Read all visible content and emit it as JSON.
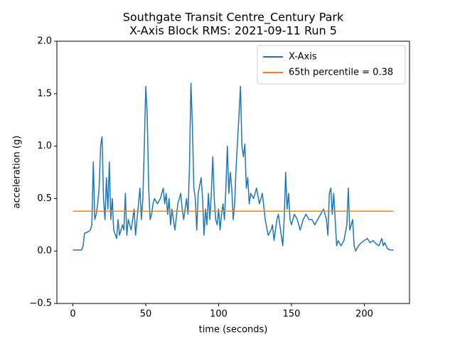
{
  "chart_data": {
    "type": "line",
    "title": "Southgate Transit Centre_Century Park",
    "subtitle": "X-Axis Block RMS: 2021-09-11 Run 5",
    "x_label": "time (seconds)",
    "y_label": "acceleration (g)",
    "xlim": [
      -11,
      231
    ],
    "ylim": [
      -0.5,
      2.0
    ],
    "xticks": [
      0,
      50,
      100,
      150,
      200
    ],
    "yticks": [
      {
        "value": -0.5,
        "label": "−0.5"
      },
      {
        "value": 0,
        "label": "0.0"
      },
      {
        "value": 0.5,
        "label": "0.5"
      },
      {
        "value": 1,
        "label": "1.0"
      },
      {
        "value": 1.5,
        "label": "1.5"
      },
      {
        "value": 2,
        "label": "2.0"
      }
    ],
    "legend": "upper right",
    "series": [
      {
        "name": "X-Axis",
        "color": "#1f77b4",
        "x": [
          0,
          2,
          4,
          6,
          7,
          8,
          10,
          12,
          13,
          14,
          15,
          16,
          17,
          18,
          19,
          20,
          21,
          22,
          23,
          24,
          25,
          26,
          27,
          28,
          30,
          31,
          32,
          34,
          35,
          36,
          37,
          38,
          40,
          42,
          43,
          44,
          46,
          47,
          48,
          49,
          50,
          51,
          52,
          53,
          54,
          55,
          56,
          58,
          60,
          62,
          63,
          64,
          65,
          66,
          67,
          68,
          70,
          72,
          74,
          75,
          76,
          78,
          79,
          80,
          81,
          82,
          83,
          84,
          85,
          86,
          88,
          89,
          90,
          91,
          92,
          93,
          94,
          95,
          96,
          97,
          98,
          99,
          100,
          101,
          102,
          103,
          104,
          105,
          106,
          107,
          108,
          109,
          110,
          111,
          112,
          113,
          114,
          115,
          116,
          117,
          118,
          119,
          120,
          121,
          122,
          124,
          126,
          128,
          130,
          132,
          134,
          136,
          137,
          138,
          140,
          141,
          142,
          144,
          145,
          146,
          147,
          148,
          149,
          150,
          152,
          154,
          156,
          158,
          160,
          162,
          164,
          166,
          168,
          170,
          172,
          174,
          175,
          176,
          177,
          178,
          179,
          180,
          181,
          182,
          184,
          186,
          188,
          189,
          190,
          192,
          193,
          194,
          196,
          198,
          200,
          202,
          204,
          206,
          208,
          210,
          212,
          213,
          214,
          216,
          218,
          220
        ],
        "values": [
          0.01,
          0.01,
          0.01,
          0.01,
          0.05,
          0.17,
          0.18,
          0.2,
          0.25,
          0.85,
          0.3,
          0.35,
          0.45,
          0.6,
          1.0,
          1.09,
          0.5,
          0.3,
          0.7,
          0.4,
          0.85,
          0.3,
          0.5,
          0.2,
          0.12,
          0.3,
          0.15,
          0.25,
          0.2,
          0.55,
          0.15,
          0.3,
          0.2,
          0.4,
          0.15,
          0.3,
          0.6,
          0.3,
          0.5,
          1.0,
          1.57,
          1.3,
          0.6,
          0.3,
          0.35,
          0.45,
          0.5,
          0.45,
          0.5,
          0.6,
          0.45,
          0.55,
          0.35,
          0.5,
          0.25,
          0.4,
          0.2,
          0.45,
          0.55,
          0.4,
          0.3,
          0.5,
          0.35,
          0.8,
          1.6,
          1.2,
          0.6,
          0.5,
          0.2,
          0.55,
          0.7,
          0.5,
          0.15,
          0.4,
          0.25,
          0.55,
          0.3,
          0.55,
          0.9,
          0.5,
          0.3,
          0.25,
          0.4,
          0.2,
          0.35,
          0.45,
          0.3,
          0.6,
          1.0,
          0.55,
          0.75,
          0.6,
          0.3,
          0.45,
          0.8,
          1.05,
          1.3,
          1.57,
          1.0,
          0.9,
          1.02,
          0.6,
          0.7,
          0.45,
          0.55,
          0.5,
          0.6,
          0.45,
          0.55,
          0.3,
          0.15,
          0.2,
          0.25,
          0.1,
          0.3,
          0.35,
          0.25,
          0.05,
          0.3,
          0.75,
          0.4,
          0.55,
          0.3,
          0.25,
          0.35,
          0.3,
          0.2,
          0.3,
          0.35,
          0.3,
          0.3,
          0.25,
          0.3,
          0.35,
          0.4,
          0.3,
          0.15,
          0.55,
          0.6,
          0.35,
          0.55,
          0.3,
          0.05,
          0.1,
          0.05,
          0.1,
          0.25,
          0.6,
          0.2,
          0.3,
          0.05,
          0.0,
          0.05,
          0.08,
          0.1,
          0.12,
          0.08,
          0.1,
          0.07,
          0.05,
          0.12,
          0.05,
          0.08,
          0.02,
          0.01,
          0.01
        ]
      },
      {
        "name": "65th percentile = 0.38",
        "color": "#ff7f0e",
        "x": [
          0,
          220
        ],
        "values": [
          0.38,
          0.38
        ]
      }
    ]
  }
}
